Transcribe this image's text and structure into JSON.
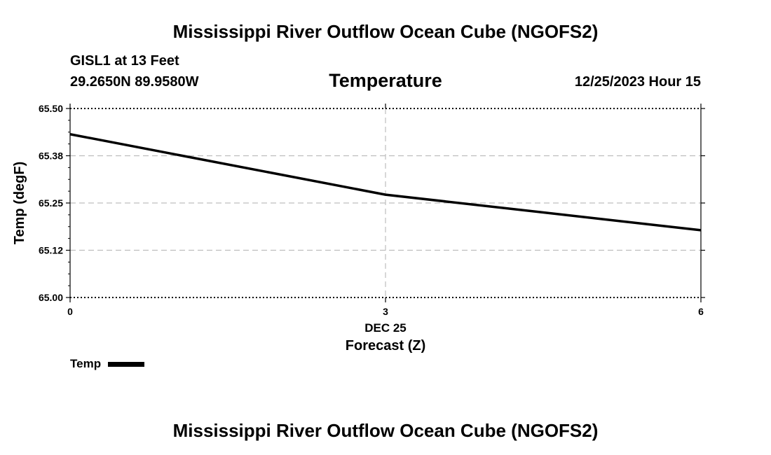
{
  "header": {
    "main_title": "Mississippi River Outflow Ocean Cube (NGOFS2)",
    "station": "GISL1 at 13 Feet",
    "coords": "29.2650N  89.9580W",
    "datetime": "12/25/2023 Hour 15"
  },
  "footer": {
    "main_title": "Mississippi River Outflow Ocean Cube (NGOFS2)"
  },
  "chart_data": {
    "type": "line",
    "title": "Temperature",
    "xlabel": "Forecast (Z)",
    "x_date_label": "DEC 25",
    "ylabel": "Temp (degF)",
    "xlim": [
      0,
      6
    ],
    "ylim": [
      65.0,
      65.5
    ],
    "x_ticks": [
      {
        "value": 0,
        "label": "0"
      },
      {
        "value": 3,
        "label": "3"
      },
      {
        "value": 6,
        "label": "6"
      }
    ],
    "y_ticks": [
      {
        "value": 65.0,
        "label": "65.00"
      },
      {
        "value": 65.125,
        "label": "65.12"
      },
      {
        "value": 65.25,
        "label": "65.25"
      },
      {
        "value": 65.375,
        "label": "65.38"
      },
      {
        "value": 65.5,
        "label": "65.50"
      }
    ],
    "grid": true,
    "legend_position": "bottom-left",
    "series": [
      {
        "name": "Temp",
        "color": "#000000",
        "x": [
          0,
          3,
          6
        ],
        "values": [
          65.432,
          65.272,
          65.178
        ]
      }
    ]
  }
}
